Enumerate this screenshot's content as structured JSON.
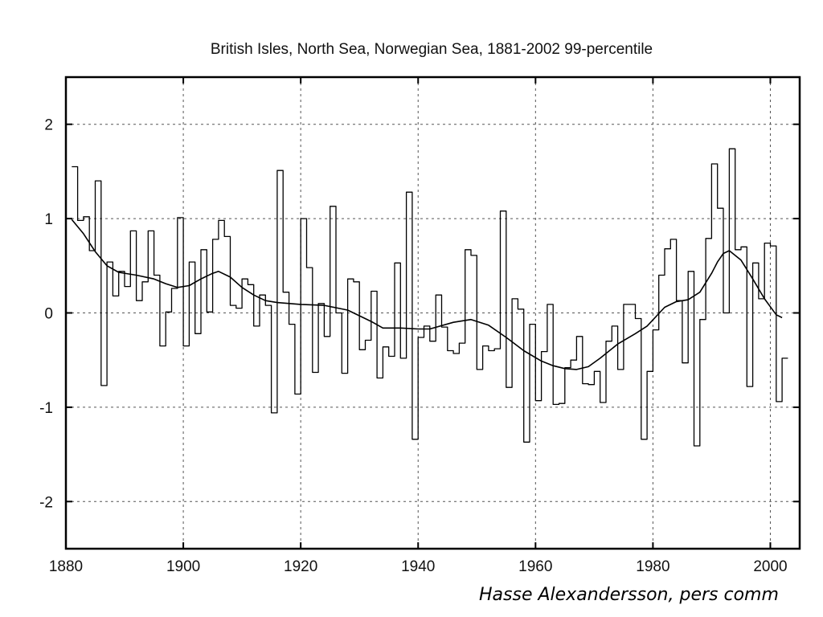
{
  "chart_data": {
    "type": "line",
    "title": "British Isles, North Sea, Norwegian Sea, 1881-2002  99-percentile",
    "xlabel": "",
    "ylabel": "",
    "xlim": [
      1880,
      2005
    ],
    "ylim": [
      -2.5,
      2.5
    ],
    "xticks": [
      "1880",
      "1900",
      "1920",
      "1940",
      "1960",
      "1980",
      "2000"
    ],
    "yticks": [
      "2",
      "1",
      "0",
      "-1",
      "-2"
    ],
    "grid": true,
    "series": [
      {
        "style": "step",
        "x": [
          1881,
          1882,
          1883,
          1884,
          1885,
          1886,
          1887,
          1888,
          1889,
          1890,
          1891,
          1892,
          1893,
          1894,
          1895,
          1896,
          1897,
          1898,
          1899,
          1900,
          1901,
          1902,
          1903,
          1904,
          1905,
          1906,
          1907,
          1908,
          1909,
          1910,
          1911,
          1912,
          1913,
          1914,
          1915,
          1916,
          1917,
          1918,
          1919,
          1920,
          1921,
          1922,
          1923,
          1924,
          1925,
          1926,
          1927,
          1928,
          1929,
          1930,
          1931,
          1932,
          1933,
          1934,
          1935,
          1936,
          1937,
          1938,
          1939,
          1940,
          1941,
          1942,
          1943,
          1944,
          1945,
          1946,
          1947,
          1948,
          1949,
          1950,
          1951,
          1952,
          1953,
          1954,
          1955,
          1956,
          1957,
          1958,
          1959,
          1960,
          1961,
          1962,
          1963,
          1964,
          1965,
          1966,
          1967,
          1968,
          1969,
          1970,
          1971,
          1972,
          1973,
          1974,
          1975,
          1976,
          1977,
          1978,
          1979,
          1980,
          1981,
          1982,
          1983,
          1984,
          1985,
          1986,
          1987,
          1988,
          1989,
          1990,
          1991,
          1992,
          1993,
          1994,
          1995,
          1996,
          1997,
          1998,
          1999,
          2000,
          2001,
          2002
        ],
        "y": [
          1.55,
          0.98,
          1.02,
          0.66,
          1.4,
          -0.77,
          0.54,
          0.18,
          0.44,
          0.28,
          0.87,
          0.13,
          0.33,
          0.87,
          0.4,
          -0.35,
          0.01,
          0.26,
          1.01,
          -0.35,
          0.54,
          -0.22,
          0.67,
          0.01,
          0.78,
          0.98,
          0.81,
          0.08,
          0.05,
          0.36,
          0.3,
          -0.14,
          0.19,
          0.08,
          -1.06,
          1.51,
          0.22,
          -0.12,
          -0.86,
          1.0,
          0.48,
          -0.63,
          0.1,
          -0.25,
          1.13,
          0.0,
          -0.64,
          0.36,
          0.33,
          -0.39,
          -0.29,
          0.23,
          -0.69,
          -0.36,
          -0.46,
          0.53,
          -0.48,
          1.28,
          -1.34,
          -0.26,
          -0.14,
          -0.3,
          0.19,
          -0.15,
          -0.4,
          -0.43,
          -0.32,
          0.67,
          0.61,
          -0.6,
          -0.35,
          -0.4,
          -0.38,
          1.08,
          -0.79,
          0.15,
          0.04,
          -1.37,
          -0.12,
          -0.93,
          -0.41,
          0.09,
          -0.97,
          -0.96,
          -0.58,
          -0.5,
          -0.25,
          -0.75,
          -0.76,
          -0.62,
          -0.95,
          -0.3,
          -0.14,
          -0.6,
          0.09,
          0.09,
          -0.06,
          -1.34,
          -0.62,
          -0.18,
          0.4,
          0.68,
          0.78,
          0.13,
          -0.53,
          0.44,
          -1.41,
          -0.07,
          0.79,
          1.58,
          1.11,
          0.0,
          1.74,
          0.67,
          0.7,
          -0.78,
          0.53,
          0.15,
          0.74,
          0.71,
          -0.94,
          -0.48
        ]
      },
      {
        "style": "smooth",
        "x": [
          1881,
          1883,
          1885,
          1887,
          1889,
          1892,
          1895,
          1897,
          1899,
          1901,
          1903,
          1905,
          1906,
          1908,
          1910,
          1912,
          1914,
          1916,
          1920,
          1924,
          1928,
          1932,
          1934,
          1937,
          1940,
          1942,
          1946,
          1949,
          1952,
          1955,
          1958,
          1961,
          1963,
          1965,
          1967,
          1969,
          1971,
          1974,
          1977,
          1979,
          1982,
          1984,
          1986,
          1988,
          1990,
          1991,
          1992,
          1993,
          1995,
          1997,
          1999,
          2001,
          2002
        ],
        "y": [
          0.99,
          0.84,
          0.65,
          0.5,
          0.43,
          0.4,
          0.36,
          0.31,
          0.27,
          0.29,
          0.36,
          0.42,
          0.44,
          0.38,
          0.27,
          0.19,
          0.13,
          0.11,
          0.09,
          0.08,
          0.03,
          -0.09,
          -0.16,
          -0.16,
          -0.17,
          -0.17,
          -0.1,
          -0.07,
          -0.13,
          -0.26,
          -0.4,
          -0.51,
          -0.56,
          -0.59,
          -0.6,
          -0.57,
          -0.48,
          -0.33,
          -0.22,
          -0.14,
          0.06,
          0.12,
          0.14,
          0.22,
          0.42,
          0.54,
          0.63,
          0.66,
          0.56,
          0.36,
          0.15,
          -0.02,
          -0.05
        ]
      }
    ]
  },
  "credit": "Hasse Alexandersson, pers comm"
}
